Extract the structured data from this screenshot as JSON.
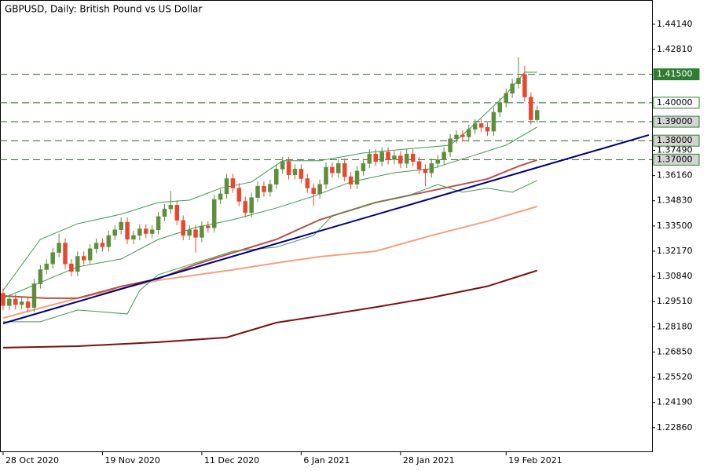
{
  "chart_data": {
    "type": "candlestick",
    "title": "GBPUSD, Daily:  British Pound vs US Dollar",
    "xlim": [
      -0.5,
      104.5
    ],
    "ylim": [
      1.2161,
      1.4542
    ],
    "xticks": [
      {
        "value": 0,
        "label": "28 Oct 2020"
      },
      {
        "value": 16,
        "label": "19 Nov 2020"
      },
      {
        "value": 32,
        "label": "11 Dec 2020"
      },
      {
        "value": 48,
        "label": "6 Jan 2021"
      },
      {
        "value": 64,
        "label": "28 Jan 2021"
      },
      {
        "value": 81,
        "label": "19 Feb 2021"
      }
    ],
    "yticks": [
      {
        "value": 1.4414,
        "label": "1.44140"
      },
      {
        "value": 1.4281,
        "label": "1.42810"
      },
      {
        "value": 1.3749,
        "label": "1.37490"
      },
      {
        "value": 1.3616,
        "label": "1.36160"
      },
      {
        "value": 1.3483,
        "label": "1.34830"
      },
      {
        "value": 1.335,
        "label": "1.33500"
      },
      {
        "value": 1.3217,
        "label": "1.32170"
      },
      {
        "value": 1.3084,
        "label": "1.30840"
      },
      {
        "value": 1.2951,
        "label": "1.29510"
      },
      {
        "value": 1.2818,
        "label": "1.28180"
      },
      {
        "value": 1.2685,
        "label": "1.26850"
      },
      {
        "value": 1.2552,
        "label": "1.25520"
      },
      {
        "value": 1.2419,
        "label": "1.24190"
      },
      {
        "value": 1.2286,
        "label": "1.22860"
      }
    ],
    "up_color": "#5e8e3c",
    "down_color": "#e8472e",
    "open": [
      1.2995,
      1.293,
      1.2965,
      1.2935,
      1.295,
      1.292,
      1.3045,
      1.312,
      1.315,
      1.321,
      1.326,
      1.315,
      1.311,
      1.319,
      1.317,
      1.323,
      1.326,
      1.324,
      1.33,
      1.333,
      1.337,
      1.328,
      1.33,
      1.3335,
      1.331,
      1.333,
      1.34,
      1.344,
      1.346,
      1.338,
      1.33,
      1.333,
      1.329,
      1.335,
      1.334,
      1.349,
      1.352,
      1.36,
      1.355,
      1.348,
      1.342,
      1.35,
      1.356,
      1.353,
      1.357,
      1.365,
      1.369,
      1.362,
      1.365,
      1.36,
      1.355,
      1.352,
      1.357,
      1.366,
      1.363,
      1.368,
      1.361,
      1.357,
      1.364,
      1.368,
      1.373,
      1.369,
      1.374,
      1.37,
      1.372,
      1.368,
      1.373,
      1.369,
      1.365,
      1.363,
      1.368,
      1.37,
      1.374,
      1.381,
      1.383,
      1.382,
      1.386,
      1.389,
      1.387,
      1.385,
      1.395,
      1.4,
      1.405,
      1.41,
      1.415,
      1.403,
      1.391
    ],
    "high": [
      1.302,
      1.299,
      1.299,
      1.2975,
      1.2975,
      1.307,
      1.3145,
      1.3175,
      1.3235,
      1.331,
      1.3285,
      1.3175,
      1.3215,
      1.3215,
      1.3255,
      1.3285,
      1.3285,
      1.3325,
      1.3355,
      1.3395,
      1.3395,
      1.3325,
      1.336,
      1.336,
      1.3355,
      1.3425,
      1.3465,
      1.3535,
      1.3485,
      1.3405,
      1.3355,
      1.3355,
      1.3375,
      1.3375,
      1.3515,
      1.3545,
      1.3625,
      1.3625,
      1.3575,
      1.3505,
      1.3525,
      1.3585,
      1.3585,
      1.3595,
      1.3675,
      1.3715,
      1.3715,
      1.3675,
      1.3675,
      1.3625,
      1.3575,
      1.3595,
      1.3685,
      1.3685,
      1.3705,
      1.3705,
      1.3635,
      1.3665,
      1.3705,
      1.3755,
      1.3755,
      1.3765,
      1.3765,
      1.3745,
      1.3745,
      1.3755,
      1.3755,
      1.3715,
      1.3675,
      1.3705,
      1.3725,
      1.3765,
      1.3835,
      1.3855,
      1.3855,
      1.3885,
      1.3915,
      1.3915,
      1.3895,
      1.3975,
      1.4025,
      1.4075,
      1.4125,
      1.424,
      1.4195,
      1.4055,
      1.3985
    ],
    "low": [
      1.2905,
      1.2905,
      1.291,
      1.291,
      1.2895,
      1.2895,
      1.302,
      1.3095,
      1.3125,
      1.3185,
      1.3125,
      1.3085,
      1.3085,
      1.3145,
      1.3145,
      1.3205,
      1.3215,
      1.3215,
      1.3275,
      1.3305,
      1.3255,
      1.3255,
      1.3275,
      1.3285,
      1.3285,
      1.3305,
      1.3375,
      1.3415,
      1.3355,
      1.3275,
      1.3275,
      1.321,
      1.3265,
      1.3315,
      1.3315,
      1.3465,
      1.3495,
      1.3525,
      1.3455,
      1.3395,
      1.3395,
      1.3475,
      1.3505,
      1.3505,
      1.3545,
      1.3625,
      1.3595,
      1.3595,
      1.3575,
      1.3525,
      1.3455,
      1.3495,
      1.3545,
      1.3605,
      1.3605,
      1.3585,
      1.3545,
      1.3545,
      1.3615,
      1.3655,
      1.3665,
      1.3665,
      1.3675,
      1.3675,
      1.3655,
      1.3655,
      1.3665,
      1.3625,
      1.356,
      1.3605,
      1.3655,
      1.3675,
      1.3715,
      1.3785,
      1.3795,
      1.3795,
      1.3835,
      1.3845,
      1.3825,
      1.3825,
      1.3925,
      1.3975,
      1.4025,
      1.4075,
      1.4005,
      1.3885,
      1.3895
    ],
    "close": [
      1.293,
      1.2965,
      1.2935,
      1.295,
      1.292,
      1.3045,
      1.312,
      1.315,
      1.321,
      1.326,
      1.315,
      1.311,
      1.319,
      1.317,
      1.323,
      1.326,
      1.324,
      1.33,
      1.333,
      1.337,
      1.328,
      1.33,
      1.3335,
      1.331,
      1.333,
      1.34,
      1.344,
      1.346,
      1.338,
      1.33,
      1.333,
      1.329,
      1.335,
      1.334,
      1.349,
      1.352,
      1.36,
      1.355,
      1.348,
      1.342,
      1.35,
      1.356,
      1.353,
      1.357,
      1.365,
      1.369,
      1.362,
      1.365,
      1.36,
      1.355,
      1.352,
      1.357,
      1.366,
      1.363,
      1.368,
      1.361,
      1.357,
      1.364,
      1.368,
      1.373,
      1.369,
      1.374,
      1.37,
      1.372,
      1.368,
      1.373,
      1.369,
      1.365,
      1.363,
      1.368,
      1.37,
      1.374,
      1.381,
      1.383,
      1.382,
      1.386,
      1.389,
      1.387,
      1.385,
      1.395,
      1.4,
      1.405,
      1.41,
      1.413,
      1.403,
      1.391,
      1.396
    ],
    "lines": [
      {
        "color": "#7a1010",
        "width": 2,
        "x": [
          0,
          12,
          25,
          36,
          44,
          51,
          60,
          69,
          78,
          86
        ],
        "values": [
          1.2708,
          1.2716,
          1.2737,
          1.2762,
          1.284,
          1.2875,
          1.2922,
          1.2972,
          1.3032,
          1.3115
        ]
      },
      {
        "color": "#f4a07c",
        "width": 2,
        "x": [
          0,
          12,
          25,
          36,
          44,
          51,
          60,
          69,
          78,
          86
        ],
        "values": [
          1.2865,
          1.2969,
          1.3064,
          1.3114,
          1.3155,
          1.3188,
          1.3217,
          1.33,
          1.3375,
          1.3453
        ]
      },
      {
        "color": "#b8524a",
        "width": 2,
        "x": [
          0,
          7,
          12,
          19,
          25,
          31,
          37,
          44,
          51,
          60,
          69,
          78,
          83,
          86
        ],
        "values": [
          1.2981,
          1.2969,
          1.2969,
          1.3031,
          1.3072,
          1.3147,
          1.3209,
          1.3279,
          1.3383,
          1.3474,
          1.3536,
          1.3598,
          1.3665,
          1.3698
        ]
      },
      {
        "color": "#3f9a4f",
        "width": 1,
        "x": [
          0,
          6,
          12,
          19,
          25,
          30,
          35,
          40,
          45,
          51,
          58,
          65,
          72,
          75,
          81,
          84,
          86
        ],
        "values": [
          1.301,
          1.3279,
          1.3362,
          1.3412,
          1.3474,
          1.3486,
          1.3549,
          1.3582,
          1.3694,
          1.3694,
          1.3735,
          1.3756,
          1.3776,
          1.3859,
          1.4045,
          1.4161,
          1.4161
        ]
      },
      {
        "color": "#3f9a4f",
        "width": 1,
        "x": [
          0,
          6,
          12,
          19,
          25,
          31,
          37,
          44,
          50,
          56,
          63,
          69,
          75,
          81,
          86
        ],
        "values": [
          1.2969,
          1.3052,
          1.3134,
          1.3176,
          1.3279,
          1.3342,
          1.3383,
          1.3445,
          1.3507,
          1.3582,
          1.3631,
          1.3652,
          1.3714,
          1.3776,
          1.3872
        ]
      },
      {
        "color": "#3f9a4f",
        "width": 1,
        "x": [
          0,
          6,
          12,
          20,
          22,
          25,
          31,
          37,
          44,
          50,
          53,
          59,
          65,
          70,
          74,
          78,
          82,
          86
        ],
        "values": [
          1.2845,
          1.2845,
          1.2907,
          1.2886,
          1.301,
          1.3093,
          1.3155,
          1.3217,
          1.3238,
          1.33,
          1.3404,
          1.3466,
          1.3507,
          1.3569,
          1.3528,
          1.3549,
          1.3528,
          1.359
        ]
      }
    ],
    "trendline": {
      "color": "#000080",
      "x": [
        0,
        104
      ],
      "y": [
        1.2836,
        1.383
      ]
    },
    "levels": [
      {
        "value": 1.415,
        "label": "1.41500",
        "bg": "#2e7d32",
        "fg": "#ffffff"
      },
      {
        "value": 1.4,
        "label": "1.40000",
        "bg": "#ffffff",
        "fg": "#000000"
      },
      {
        "value": 1.39,
        "label": "1.39000",
        "bg": "#d4d4d4",
        "fg": "#000000"
      },
      {
        "value": 1.38,
        "label": "1.38000",
        "bg": "#d4d4d4",
        "fg": "#000000"
      },
      {
        "value": 1.37,
        "label": "1.37000",
        "bg": "#d4d4d4",
        "fg": "#000000"
      }
    ]
  }
}
